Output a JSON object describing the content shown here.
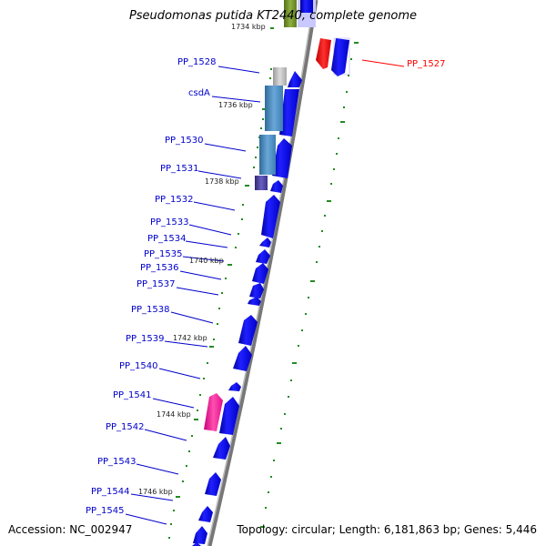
{
  "title": "Pseudomonas putida KT2440, complete genome",
  "footer": {
    "accession": "Accession: NC_002947",
    "topology": "Topology: circular; Length: 6,181,863 bp; Genes: 5,446"
  },
  "colors": {
    "gene_label": "#0000cc",
    "highlight_label": "#ff0000",
    "backbone": "#888888",
    "tick": "#228b22",
    "cds": "#0000ff",
    "selected_cds": "#ff0000",
    "steelblue_feature": "#4682b4",
    "darkslate_feature": "#483d8b",
    "pink_feature": "#ff1493",
    "grey_feature": "#bbbbbb",
    "olive_feature": "#6b8e23"
  },
  "gene_labels": [
    {
      "id": "pp1527",
      "text": "PP_1527",
      "highlight": true
    },
    {
      "id": "pp1528",
      "text": "PP_1528"
    },
    {
      "id": "csda",
      "text": "csdA"
    },
    {
      "id": "pp1530",
      "text": "PP_1530"
    },
    {
      "id": "pp1531",
      "text": "PP_1531"
    },
    {
      "id": "pp1532",
      "text": "PP_1532"
    },
    {
      "id": "pp1533",
      "text": "PP_1533"
    },
    {
      "id": "pp1534",
      "text": "PP_1534"
    },
    {
      "id": "pp1535",
      "text": "PP_1535"
    },
    {
      "id": "pp1536",
      "text": "PP_1536"
    },
    {
      "id": "pp1537",
      "text": "PP_1537"
    },
    {
      "id": "pp1538",
      "text": "PP_1538"
    },
    {
      "id": "pp1539",
      "text": "PP_1539"
    },
    {
      "id": "pp1540",
      "text": "PP_1540"
    },
    {
      "id": "pp1541",
      "text": "PP_1541"
    },
    {
      "id": "pp1542",
      "text": "PP_1542"
    },
    {
      "id": "pp1543",
      "text": "PP_1543"
    },
    {
      "id": "pp1544",
      "text": "PP_1544"
    },
    {
      "id": "pp1545",
      "text": "PP_1545"
    }
  ],
  "ruler_labels": [
    "1734 kbp",
    "1736 kbp",
    "1738 kbp",
    "1740 kbp",
    "1742 kbp",
    "1744 kbp",
    "1746 kbp"
  ]
}
